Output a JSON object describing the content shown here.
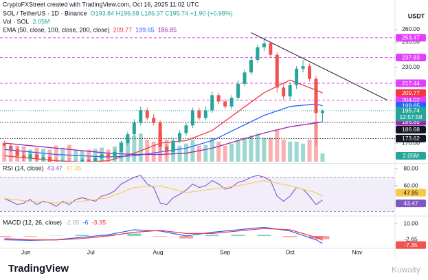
{
  "header": {
    "credit": "CryptoFXStreet created with TradingView.com, Oct 16, 2025 11:02 UTC",
    "logo": "TradingView",
    "watermark": "Kuwaity"
  },
  "chart_data": [
    {
      "type": "candlestick",
      "title": "SOL / TetherUS · 1D · Binance",
      "ohlc_label": "O193.84 H196.68 L186.37 C195.74 +1.90 (+0.98%)",
      "currency": "USDT",
      "up_color": "#26a69a",
      "down_color": "#ef5350",
      "x": [
        2,
        5,
        8,
        11,
        14,
        17,
        20,
        23,
        26,
        29,
        32,
        35,
        38,
        41,
        44,
        47,
        50,
        53,
        56,
        59,
        62,
        65,
        68,
        71,
        74,
        77,
        80,
        83,
        86,
        89,
        92,
        95,
        98,
        101,
        104,
        107,
        110,
        113,
        116,
        119,
        122,
        125,
        128,
        131,
        134,
        137,
        140,
        143,
        146,
        149
      ],
      "open": [
        170,
        168,
        165,
        160,
        158,
        161,
        157,
        159,
        155,
        152,
        156,
        152,
        155,
        157,
        155,
        158,
        161,
        159,
        163,
        170,
        177,
        186,
        196,
        190,
        186,
        167,
        163,
        172,
        178,
        184,
        196,
        190,
        196,
        208,
        203,
        199,
        206,
        217,
        226,
        236,
        246,
        249,
        240,
        214,
        207,
        216,
        229,
        231,
        221,
        193.84
      ],
      "high": [
        172,
        170,
        167,
        163,
        163,
        163,
        161,
        161,
        158,
        158,
        158,
        157,
        159,
        159,
        160,
        163,
        163,
        165,
        172,
        179,
        189,
        199,
        198,
        193,
        188,
        169,
        174,
        180,
        186,
        198,
        198,
        199,
        211,
        210,
        205,
        208,
        220,
        228,
        239,
        248,
        253.5,
        250,
        242,
        217,
        218,
        231,
        236,
        233,
        223,
        196.68
      ],
      "low": [
        167,
        163,
        158,
        156,
        156,
        155,
        155,
        153,
        150,
        151,
        150,
        151,
        153,
        153,
        153,
        156,
        157,
        157,
        161,
        168,
        175,
        184,
        188,
        184,
        164,
        160,
        161,
        170,
        176,
        182,
        188,
        188,
        194,
        201,
        197,
        197,
        204,
        215,
        224,
        234,
        243,
        238,
        210,
        204,
        204,
        213,
        226,
        219,
        168,
        186.37
      ],
      "close": [
        168,
        165,
        160,
        158,
        161,
        157,
        159,
        155,
        152,
        156,
        152,
        155,
        157,
        155,
        158,
        161,
        159,
        163,
        170,
        177,
        186,
        196,
        190,
        186,
        167,
        163,
        172,
        178,
        184,
        196,
        190,
        196,
        208,
        203,
        199,
        206,
        217,
        226,
        236,
        246,
        249,
        240,
        214,
        207,
        216,
        229,
        231,
        221,
        193.84,
        195.74
      ],
      "countdown": "12:57:58",
      "volume": {
        "label": "Vol · SOL",
        "color": "#26a69a",
        "down_color": "#ef5350",
        "vlim": [
          0,
          12
        ],
        "last_label": "2.05M",
        "values": [
          4,
          3.5,
          4,
          3.8,
          3,
          3.5,
          3.2,
          3,
          4,
          3.5,
          4.2,
          3,
          2.8,
          3,
          3.2,
          3.5,
          3,
          3.8,
          5,
          6,
          6.5,
          7,
          5.5,
          5,
          7,
          5.5,
          4.5,
          4,
          4.5,
          5.5,
          4,
          4.2,
          6,
          5,
          4,
          4.5,
          5.5,
          6,
          6.5,
          7,
          6,
          6,
          8,
          5.5,
          5,
          5,
          4.5,
          5.5,
          10,
          2.05
        ]
      },
      "ema_label": "EMA (50, close, 100, close, 200, close)",
      "series": [
        {
          "color": "#f23645",
          "x": [
            2,
            14,
            26,
            38,
            50,
            62,
            74,
            86,
            98,
            110,
            122,
            134,
            146,
            149
          ],
          "values": [
            160,
            158,
            156,
            155,
            156,
            162,
            170,
            172,
            180,
            195,
            210,
            220,
            212,
            209.77
          ]
        },
        {
          "color": "#2962ff",
          "x": [
            2,
            14,
            26,
            38,
            50,
            62,
            74,
            86,
            98,
            110,
            122,
            134,
            146,
            149
          ],
          "values": [
            165,
            163,
            161,
            160,
            159,
            160,
            163,
            166,
            172,
            182,
            192,
            199,
            201,
            199.65
          ]
        },
        {
          "color": "#9c27b0",
          "x": [
            2,
            14,
            26,
            38,
            50,
            62,
            74,
            86,
            98,
            110,
            122,
            134,
            146,
            149
          ],
          "values": [
            170,
            168,
            166,
            164,
            162,
            161,
            161,
            162,
            166,
            172,
            178,
            183,
            186,
            186.85
          ]
        }
      ],
      "levels": [
        {
          "value": 253.47,
          "color": "#e040fb",
          "style": "dashed"
        },
        {
          "value": 237.83,
          "color": "#e040fb",
          "style": "dashed"
        },
        {
          "value": 217.44,
          "color": "#e040fb",
          "style": "dashed"
        },
        {
          "value": 204.02,
          "color": "#e040fb",
          "style": "dashed"
        },
        {
          "value": 186.68,
          "color": "#131722",
          "style": "dotted"
        },
        {
          "value": 173.62,
          "color": "#131722",
          "style": "dotted"
        }
      ],
      "trendline": {
        "color": "#131722",
        "x": [
          116,
          179
        ],
        "values": [
          257.5,
          204
        ]
      },
      "xlim": [
        0,
        182.5
      ],
      "ylim": [
        155.3,
        262.7
      ],
      "yticks": [
        {
          "value": 260,
          "label": "260.00"
        },
        {
          "value": 250,
          "label": "250.00"
        },
        {
          "value": 230,
          "label": "230.00"
        },
        {
          "value": 170,
          "label": "170.00"
        }
      ],
      "xticks": [
        {
          "value": 12,
          "label": "Jun"
        },
        {
          "value": 42,
          "label": "Jul"
        },
        {
          "value": 73,
          "label": "Aug"
        },
        {
          "value": 104,
          "label": "Sep"
        },
        {
          "value": 134,
          "label": "Oct"
        },
        {
          "value": 165,
          "label": "Nov"
        }
      ]
    },
    {
      "type": "line",
      "title": "RSI (14, close)",
      "band": [
        30,
        70
      ],
      "band_color": "#7e57c2",
      "xlim": [
        0,
        182.5
      ],
      "ylim": [
        26.4,
        84
      ],
      "yticks": [
        {
          "value": 80,
          "label": "80.00"
        },
        {
          "value": 60,
          "label": "60.00"
        }
      ],
      "series": [
        {
          "color": "#7e57c2",
          "x": [
            2,
            5,
            8,
            11,
            14,
            17,
            20,
            23,
            26,
            29,
            32,
            35,
            38,
            41,
            44,
            47,
            50,
            53,
            56,
            59,
            62,
            65,
            68,
            71,
            74,
            77,
            80,
            83,
            86,
            89,
            92,
            95,
            98,
            101,
            104,
            107,
            110,
            113,
            116,
            119,
            122,
            125,
            128,
            131,
            134,
            137,
            140,
            143,
            146,
            149
          ],
          "values": [
            45,
            42,
            38,
            40,
            44,
            38,
            42,
            40,
            36,
            42,
            38,
            44,
            46,
            44,
            42,
            48,
            50,
            54,
            62,
            66,
            70,
            72,
            62,
            58,
            40,
            38,
            46,
            50,
            55,
            62,
            58,
            60,
            66,
            62,
            56,
            58,
            64,
            66,
            70,
            72,
            70,
            66,
            48,
            42,
            48,
            58,
            56,
            48,
            38,
            43.47
          ]
        },
        {
          "color": "#f7c948",
          "x": [
            2,
            14,
            26,
            38,
            50,
            62,
            74,
            86,
            98,
            110,
            122,
            134,
            146,
            149
          ],
          "values": [
            45,
            42,
            40,
            42,
            46,
            58,
            60,
            52,
            56,
            60,
            66,
            60,
            52,
            47.95
          ]
        }
      ]
    },
    {
      "type": "macd",
      "title": "MACD (12, 26, close)",
      "xlim": [
        0,
        182.5
      ],
      "ylim": [
        -9.4,
        15
      ],
      "yticks": [
        {
          "value": 10,
          "label": "10.00"
        }
      ],
      "histogram": {
        "up_color": "#26a69a",
        "down_color": "#ef5350",
        "x": [
          2,
          14,
          26,
          38,
          50,
          62,
          74,
          86,
          98,
          110,
          122,
          134,
          146,
          149
        ],
        "values": [
          -1,
          -0.5,
          0.2,
          1,
          1,
          2,
          -0.5,
          -2,
          1,
          1,
          1,
          -1,
          -2,
          -2.65
        ]
      },
      "series": [
        {
          "color": "#2962ff",
          "x": [
            2,
            14,
            26,
            38,
            50,
            62,
            74,
            86,
            98,
            110,
            122,
            134,
            146,
            149
          ],
          "values": [
            -3,
            -3.5,
            -3,
            -1,
            1,
            5,
            4,
            0,
            3,
            5,
            7,
            4,
            -3,
            -6.0
          ]
        },
        {
          "color": "#f23645",
          "x": [
            2,
            14,
            26,
            38,
            50,
            62,
            74,
            86,
            98,
            110,
            122,
            134,
            146,
            149
          ],
          "values": [
            -2,
            -3,
            -3.2,
            -2,
            0,
            3,
            4.5,
            2,
            2,
            4,
            6,
            5,
            -1,
            -3.35
          ]
        }
      ],
      "price_labels": [
        {
          "value": -7.35,
          "color": "#ef5350"
        }
      ]
    }
  ]
}
